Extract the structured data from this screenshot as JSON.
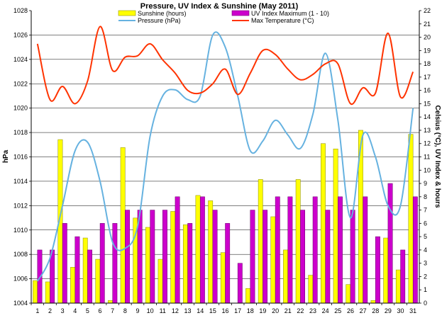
{
  "chart_data": {
    "type": "bar",
    "title": "Pressure, UV Index & Sunshine (May 2011)",
    "ylabel_left": "hPa",
    "ylabel_right": "Celsius (°C), UV Index & hours",
    "y_left": {
      "min": 1004,
      "max": 1028,
      "step": 2
    },
    "y_right": {
      "min": 0,
      "max": 22,
      "step": 1
    },
    "categories": [
      "1",
      "2",
      "3",
      "4",
      "5",
      "6",
      "7",
      "8",
      "9",
      "10",
      "11",
      "12",
      "13",
      "14",
      "15",
      "16",
      "17",
      "18",
      "19",
      "20",
      "21",
      "22",
      "23",
      "24",
      "25",
      "26",
      "27",
      "28",
      "29",
      "30",
      "31"
    ],
    "legend": {
      "sunshine": "Sunshine (hours)",
      "uv": "UV Index Maximum (1 - 10)",
      "pressure": "Pressure (hPa)",
      "temperature": "Max Temperature (°C)"
    },
    "colors": {
      "sunshine_fill": "#ffff00",
      "uv_fill": "#cc00cc",
      "pressure": "#66b2e0",
      "temperature": "#ff3300",
      "grid": "#000000"
    },
    "series": [
      {
        "name": "Sunshine (hours)",
        "kind": "bar",
        "axis": "right",
        "values": [
          1.7,
          1.6,
          12.3,
          2.7,
          4.9,
          3.3,
          0.2,
          11.7,
          6.4,
          5.7,
          3.3,
          6.9,
          5.9,
          8.1,
          7.7,
          3.8,
          0,
          1.1,
          9.3,
          6.5,
          4.0,
          9.3,
          2.1,
          12.0,
          11.6,
          1.4,
          13.0,
          0.2,
          4.9,
          2.5,
          12.7
        ]
      },
      {
        "name": "UV Index Maximum (1 - 10)",
        "kind": "bar",
        "axis": "right",
        "values": [
          4,
          4,
          6,
          5,
          4,
          6,
          6,
          7,
          7,
          7,
          7,
          8,
          6,
          8,
          7,
          6,
          3,
          7,
          7,
          8,
          8,
          7,
          8,
          7,
          8,
          7,
          8,
          5,
          9,
          4,
          8
        ]
      },
      {
        "name": "Pressure (hPa)",
        "kind": "line",
        "axis": "left",
        "values": [
          1005.8,
          1007.7,
          1012.0,
          1016.5,
          1017.2,
          1014.0,
          1009.0,
          1008.5,
          1010.3,
          1017.7,
          1021.0,
          1021.5,
          1020.7,
          1021.0,
          1026.0,
          1025.0,
          1021.0,
          1016.5,
          1017.3,
          1019.0,
          1017.8,
          1016.7,
          1019.5,
          1024.5,
          1019.0,
          1011.0,
          1017.8,
          1016.0,
          1012.0,
          1012.0,
          1020.0
        ]
      },
      {
        "name": "Max Temperature (°C)",
        "kind": "line",
        "axis": "right",
        "values": [
          19.5,
          15.3,
          16.3,
          15.0,
          16.7,
          20.8,
          17.5,
          18.5,
          18.6,
          19.5,
          18.3,
          17.3,
          16.0,
          15.8,
          16.5,
          17.6,
          15.7,
          17.3,
          19.0,
          18.7,
          17.6,
          16.8,
          17.2,
          18.0,
          18.0,
          15.0,
          16.2,
          15.8,
          20.3,
          15.5,
          17.4
        ]
      }
    ]
  }
}
